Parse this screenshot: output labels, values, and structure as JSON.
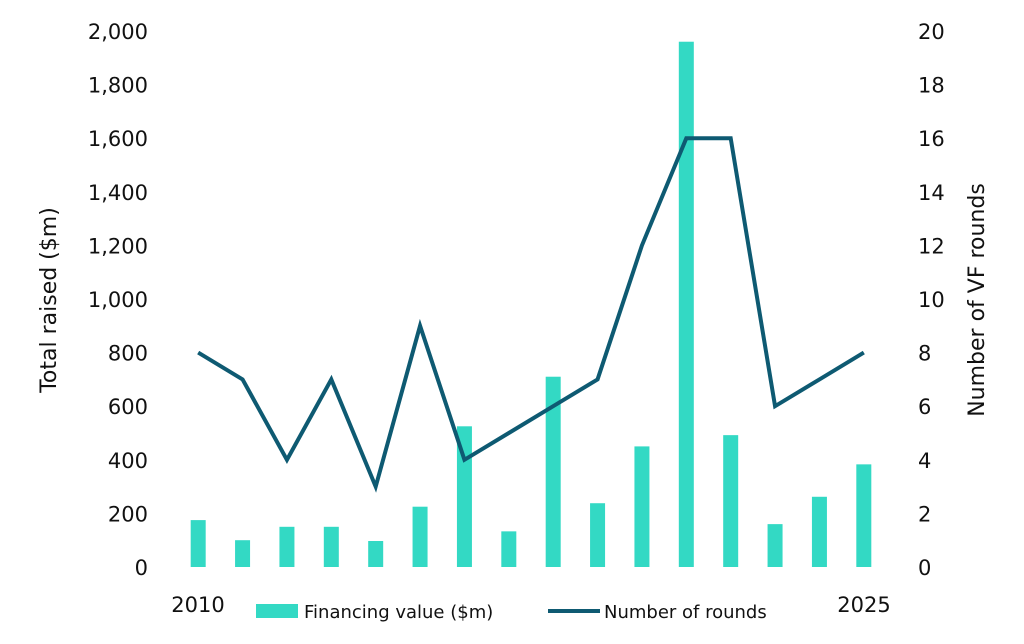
{
  "chart_data": {
    "type": "bar+line",
    "title": "",
    "categories": [
      "2010",
      "2011",
      "2012",
      "2013",
      "2014",
      "2015",
      "2016",
      "2017",
      "2018",
      "2019",
      "2020",
      "2021",
      "2022",
      "2023",
      "2024",
      "2025"
    ],
    "x_tick_labels": [
      "2010",
      "2025"
    ],
    "ylabel": "Total raised ($m)",
    "y2label": "Number of VF rounds",
    "ylim": [
      0,
      2000
    ],
    "y2lim": [
      0,
      20
    ],
    "yticks": [
      "0",
      "200",
      "400",
      "600",
      "800",
      "1,000",
      "1,200",
      "1,400",
      "1,600",
      "1,800",
      "2,000"
    ],
    "y2ticks": [
      "0",
      "2",
      "4",
      "6",
      "8",
      "10",
      "12",
      "14",
      "16",
      "18",
      "20"
    ],
    "grid": false,
    "legend_position": "bottom",
    "series": [
      {
        "name": "Financing value ($m)",
        "type": "bar",
        "axis": "left",
        "color": "#33d9c4",
        "values": [
          175,
          100,
          150,
          150,
          97,
          225,
          525,
          133,
          710,
          238,
          450,
          1960,
          492,
          160,
          262,
          383
        ]
      },
      {
        "name": "Number of rounds",
        "type": "line",
        "axis": "right",
        "color": "#0e5a72",
        "values": [
          8,
          7,
          4,
          7,
          3,
          9,
          4,
          5,
          6,
          7,
          12,
          16,
          16,
          6,
          7,
          8
        ]
      }
    ]
  }
}
